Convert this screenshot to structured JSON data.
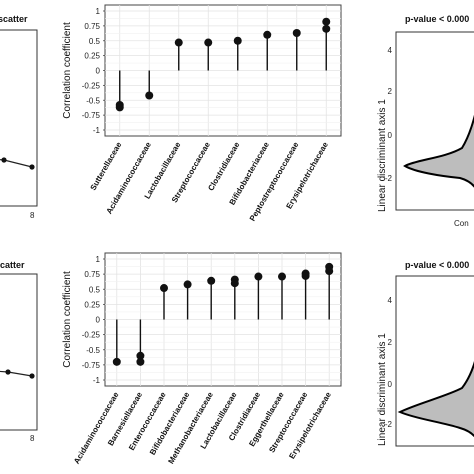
{
  "figure": {
    "top_left_title": "scatter",
    "bottom_left_title": "catter",
    "left_tick_x": "8",
    "violin_title": "p-value < 0.000",
    "violin_ylabel": "Linear discriminant axis 1",
    "violin_xtick": "Con",
    "violin_yticks": [
      "4",
      "2",
      "0",
      "-2"
    ]
  },
  "chart_data": [
    {
      "type": "scatter",
      "title": "",
      "xlabel": "",
      "ylabel": "Correlation coefficient",
      "ylim": [
        -1,
        1
      ],
      "yticks": [
        1,
        0.75,
        0.5,
        0.25,
        0,
        -0.25,
        -0.5,
        -0.75,
        -1
      ],
      "ytick_labels": [
        "1",
        "0.75",
        "0.5",
        "0.25",
        "0",
        "-0.25",
        "-0.5",
        "-0.75",
        "-1"
      ],
      "grid": true,
      "categories": [
        "Sutterellaceae",
        "Acidaminococcaceae",
        "Lactobacillaceae",
        "Streptococcaceae",
        "Clostridiaceae",
        "Bifidobacteriaceae",
        "Peptostreptococcaceae",
        "Erysipelotrichaceae"
      ],
      "points": [
        [
          -0.58,
          -0.62
        ],
        [
          -0.42
        ],
        [
          0.47
        ],
        [
          0.47
        ],
        [
          0.5
        ],
        [
          0.6
        ],
        [
          0.63
        ],
        [
          0.82,
          0.7
        ]
      ]
    },
    {
      "type": "scatter",
      "title": "",
      "xlabel": "",
      "ylabel": "Correlation coefficient",
      "ylim": [
        -1,
        1
      ],
      "yticks": [
        1,
        0.75,
        0.5,
        0.25,
        0,
        -0.25,
        -0.5,
        -0.75,
        -1
      ],
      "ytick_labels": [
        "1",
        "0.75",
        "0.5",
        "0.25",
        "0",
        "-0.25",
        "-0.5",
        "-0.75",
        "-1"
      ],
      "grid": true,
      "categories": [
        "Acidaminococcaceae",
        "Barnesiellaceae",
        "Enterococcaceae",
        "Bifidobacteriaceae",
        "Methanobacteriaceae",
        "Lactobacillaceae",
        "Clostridiaceae",
        "Eggerthellaceae",
        "Streptococcaceae",
        "Erysipelotrichaceae"
      ],
      "points": [
        [
          -0.7
        ],
        [
          -0.6,
          -0.7
        ],
        [
          0.52
        ],
        [
          0.58
        ],
        [
          0.64
        ],
        [
          0.66,
          0.6
        ],
        [
          0.71
        ],
        [
          0.71
        ],
        [
          0.76,
          0.72
        ],
        [
          0.87,
          0.8
        ]
      ]
    }
  ]
}
